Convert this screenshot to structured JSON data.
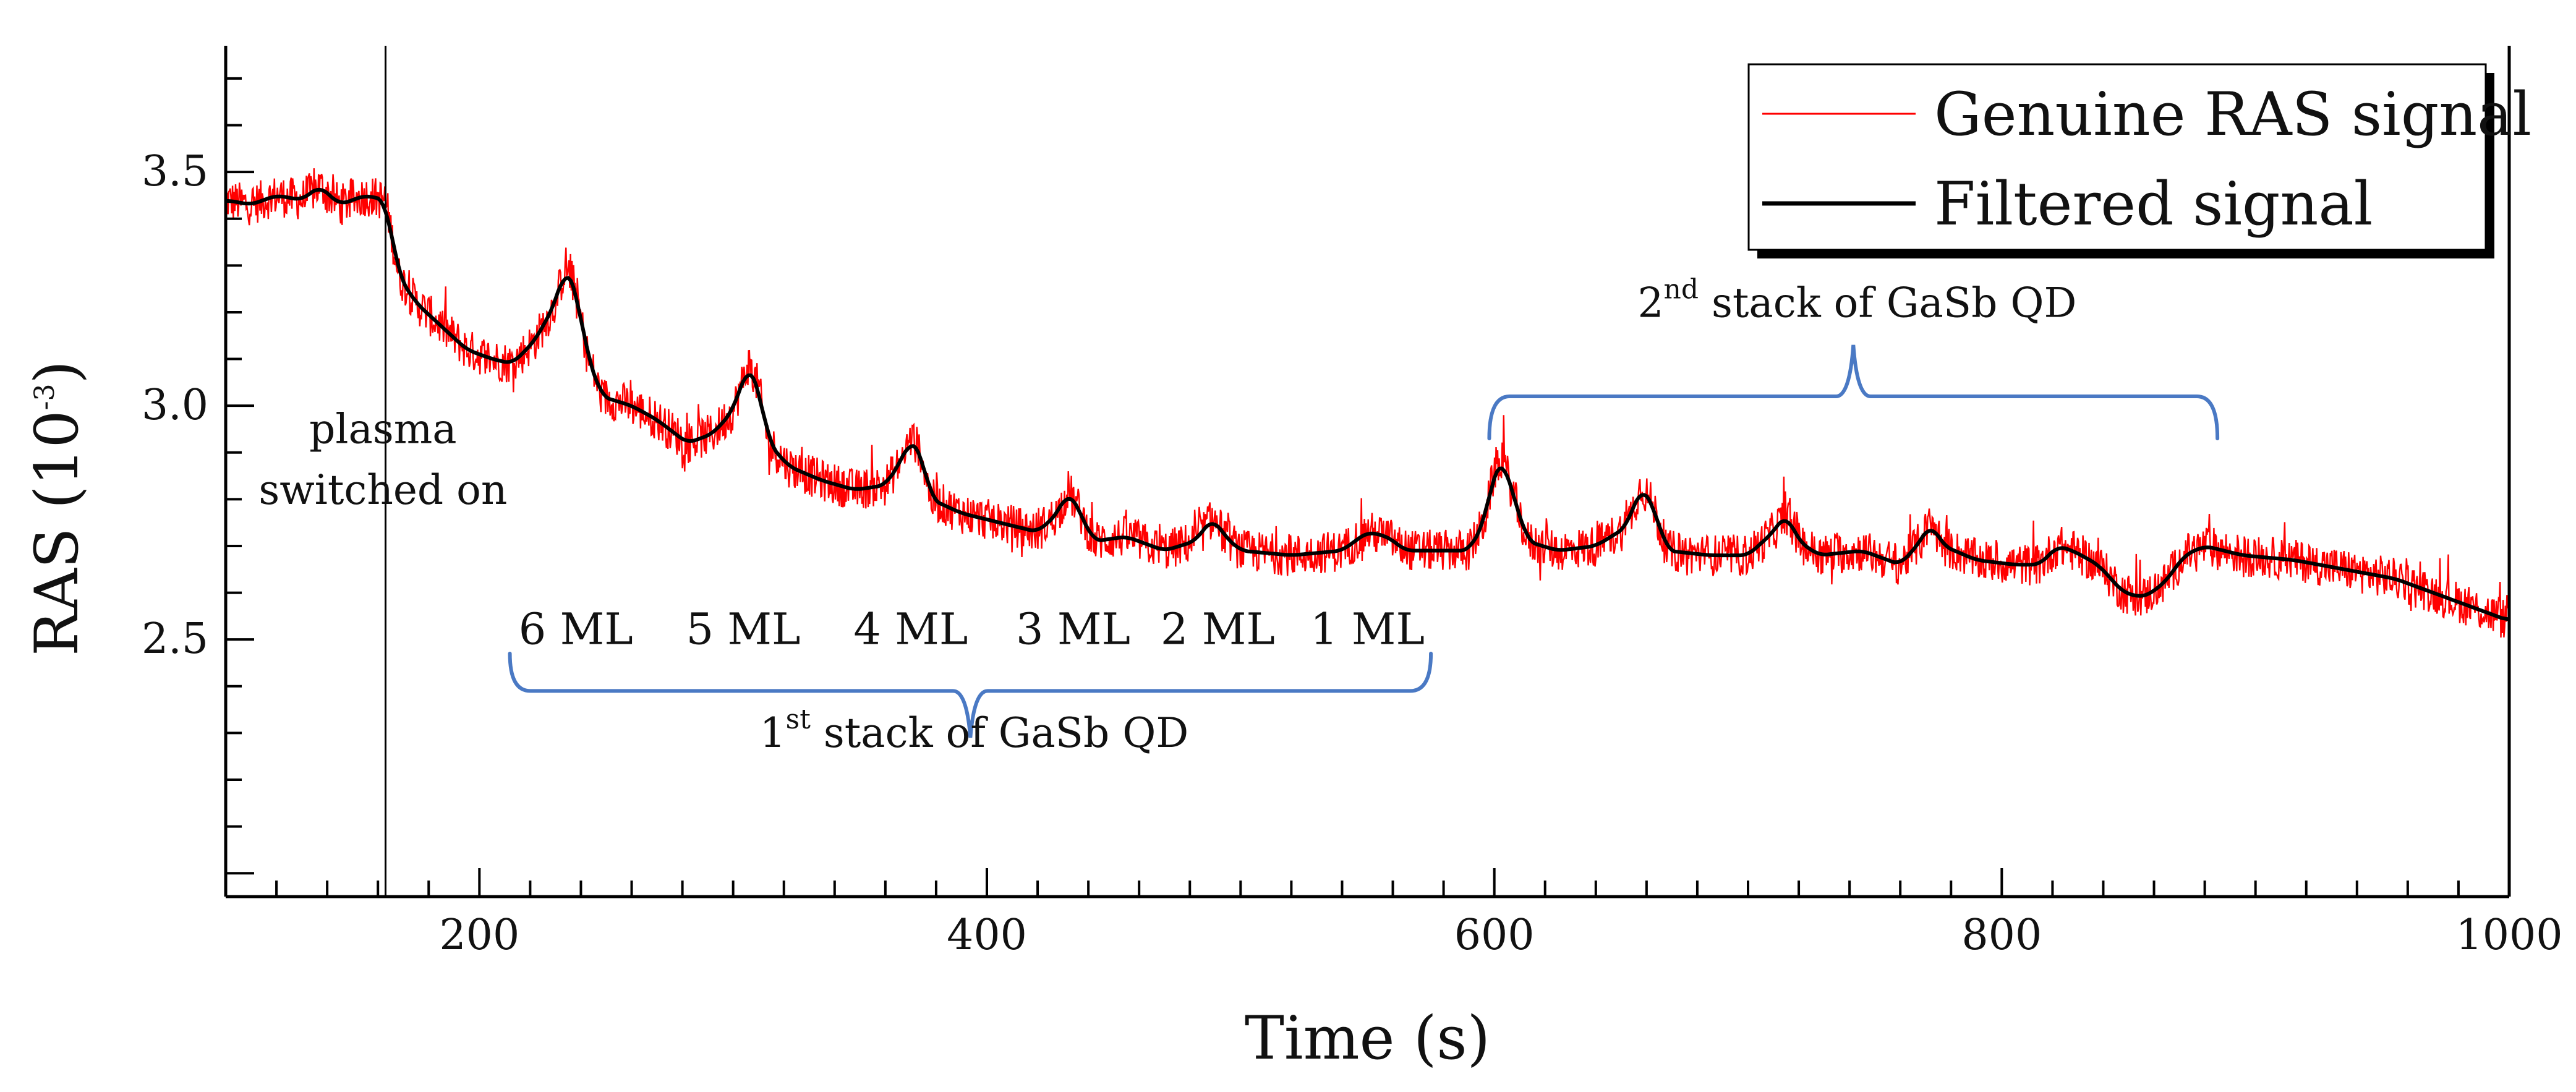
{
  "chart_data": {
    "type": "line",
    "title": "",
    "xlabel": "Time (s)",
    "ylabel": "RAS (10",
    "ylabel_sup": "-3",
    "ylabel_close": ")",
    "xlim": [
      100,
      1000
    ],
    "ylim": [
      1.95,
      3.77
    ],
    "x_ticks": [
      200,
      400,
      600,
      800,
      1000
    ],
    "y_ticks": [
      2.5,
      3.0,
      3.5
    ],
    "x_tick_labels": [
      "200",
      "400",
      "600",
      "800",
      "1000"
    ],
    "y_tick_labels": [
      "2.5",
      "3.0",
      "3.5"
    ],
    "grid": false,
    "legend": {
      "position": "top-right",
      "entries": [
        {
          "name": "Genuine RAS signal",
          "color": "#ff0000"
        },
        {
          "name": "Filtered signal",
          "color": "#000000"
        }
      ]
    },
    "series": [
      {
        "name": "Filtered signal",
        "color": "#000000",
        "points": [
          [
            100,
            3.44
          ],
          [
            110,
            3.43
          ],
          [
            120,
            3.45
          ],
          [
            130,
            3.44
          ],
          [
            137,
            3.47
          ],
          [
            145,
            3.43
          ],
          [
            155,
            3.45
          ],
          [
            163,
            3.44
          ],
          [
            165,
            3.38
          ],
          [
            168,
            3.28
          ],
          [
            175,
            3.22
          ],
          [
            185,
            3.17
          ],
          [
            195,
            3.12
          ],
          [
            205,
            3.1
          ],
          [
            213,
            3.09
          ],
          [
            222,
            3.14
          ],
          [
            230,
            3.22
          ],
          [
            234,
            3.3
          ],
          [
            238,
            3.25
          ],
          [
            242,
            3.12
          ],
          [
            248,
            3.02
          ],
          [
            260,
            3.0
          ],
          [
            270,
            2.97
          ],
          [
            282,
            2.92
          ],
          [
            292,
            2.94
          ],
          [
            300,
            2.99
          ],
          [
            306,
            3.09
          ],
          [
            310,
            3.04
          ],
          [
            314,
            2.92
          ],
          [
            322,
            2.87
          ],
          [
            335,
            2.84
          ],
          [
            348,
            2.82
          ],
          [
            360,
            2.83
          ],
          [
            366,
            2.88
          ],
          [
            370,
            2.93
          ],
          [
            374,
            2.9
          ],
          [
            378,
            2.8
          ],
          [
            390,
            2.77
          ],
          [
            405,
            2.75
          ],
          [
            420,
            2.73
          ],
          [
            428,
            2.77
          ],
          [
            432,
            2.82
          ],
          [
            436,
            2.78
          ],
          [
            442,
            2.71
          ],
          [
            455,
            2.72
          ],
          [
            470,
            2.69
          ],
          [
            482,
            2.71
          ],
          [
            489,
            2.76
          ],
          [
            494,
            2.72
          ],
          [
            500,
            2.69
          ],
          [
            520,
            2.68
          ],
          [
            540,
            2.69
          ],
          [
            550,
            2.73
          ],
          [
            558,
            2.72
          ],
          [
            565,
            2.69
          ],
          [
            590,
            2.69
          ],
          [
            596,
            2.75
          ],
          [
            600,
            2.86
          ],
          [
            603,
            2.89
          ],
          [
            608,
            2.8
          ],
          [
            613,
            2.71
          ],
          [
            625,
            2.69
          ],
          [
            640,
            2.7
          ],
          [
            652,
            2.74
          ],
          [
            658,
            2.83
          ],
          [
            663,
            2.78
          ],
          [
            668,
            2.69
          ],
          [
            685,
            2.68
          ],
          [
            700,
            2.68
          ],
          [
            710,
            2.73
          ],
          [
            715,
            2.77
          ],
          [
            720,
            2.71
          ],
          [
            728,
            2.68
          ],
          [
            745,
            2.69
          ],
          [
            760,
            2.66
          ],
          [
            768,
            2.71
          ],
          [
            772,
            2.75
          ],
          [
            777,
            2.7
          ],
          [
            790,
            2.67
          ],
          [
            805,
            2.66
          ],
          [
            815,
            2.66
          ],
          [
            822,
            2.7
          ],
          [
            828,
            2.69
          ],
          [
            838,
            2.66
          ],
          [
            848,
            2.6
          ],
          [
            856,
            2.59
          ],
          [
            864,
            2.62
          ],
          [
            872,
            2.68
          ],
          [
            880,
            2.7
          ],
          [
            895,
            2.68
          ],
          [
            915,
            2.67
          ],
          [
            935,
            2.65
          ],
          [
            955,
            2.63
          ],
          [
            970,
            2.6
          ],
          [
            985,
            2.57
          ],
          [
            1000,
            2.54
          ]
        ]
      },
      {
        "name": "Genuine RAS signal",
        "color": "#ff0000",
        "noise_amplitude": 0.045
      }
    ],
    "annotations": [
      {
        "text": "plasma",
        "x": 162,
        "y": 2.92
      },
      {
        "text": "switched on",
        "x": 162,
        "y": 2.79
      },
      {
        "text": "6 ML",
        "x": 238,
        "y": 2.49
      },
      {
        "text": "5 ML",
        "x": 304,
        "y": 2.49
      },
      {
        "text": "4 ML",
        "x": 370,
        "y": 2.49
      },
      {
        "text": "3 ML",
        "x": 434,
        "y": 2.49
      },
      {
        "text": "2 ML",
        "x": 491,
        "y": 2.49
      },
      {
        "text": "1 ML",
        "x": 550,
        "y": 2.49
      },
      {
        "text": "1",
        "sup": "st",
        "rest": " stack of GaSb QD",
        "x": 395,
        "y": 2.27
      },
      {
        "text": "2",
        "sup": "nd",
        "rest": " stack of GaSb QD",
        "x": 743,
        "y": 3.19
      }
    ],
    "vertical_line": {
      "x": 163,
      "y_range": [
        1.95,
        3.77
      ]
    },
    "brackets": [
      {
        "x_range": [
          212,
          575
        ],
        "y_top": 2.47,
        "y_base": 2.39,
        "tip_y": 2.29
      },
      {
        "x_range": [
          598,
          885
        ],
        "y_top": 2.93,
        "y_base": 3.02,
        "tip_y": 3.13
      }
    ]
  }
}
